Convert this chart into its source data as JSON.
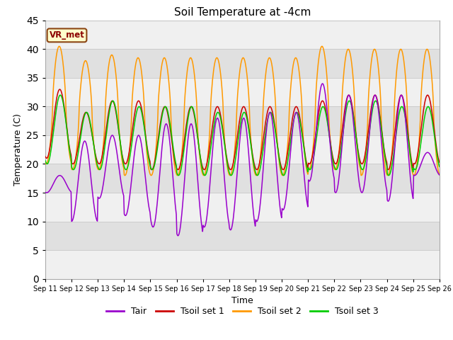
{
  "title": "Soil Temperature at -4cm",
  "xlabel": "Time",
  "ylabel": "Temperature (C)",
  "ylim": [
    0,
    45
  ],
  "yticks": [
    0,
    5,
    10,
    15,
    20,
    25,
    30,
    35,
    40,
    45
  ],
  "colors": {
    "Tair": "#9900cc",
    "Tsoil_set1": "#cc0000",
    "Tsoil_set2": "#ff9900",
    "Tsoil_set3": "#00cc00"
  },
  "legend_labels": [
    "Tair",
    "Tsoil set 1",
    "Tsoil set 2",
    "Tsoil set 3"
  ],
  "annotation_text": "VR_met",
  "grid_color": "#bbbbbb",
  "bg_color": "#f5f5f5",
  "band_light": "#f0f0f0",
  "band_dark": "#e0e0e0",
  "n_days": 15,
  "start_day": 11
}
